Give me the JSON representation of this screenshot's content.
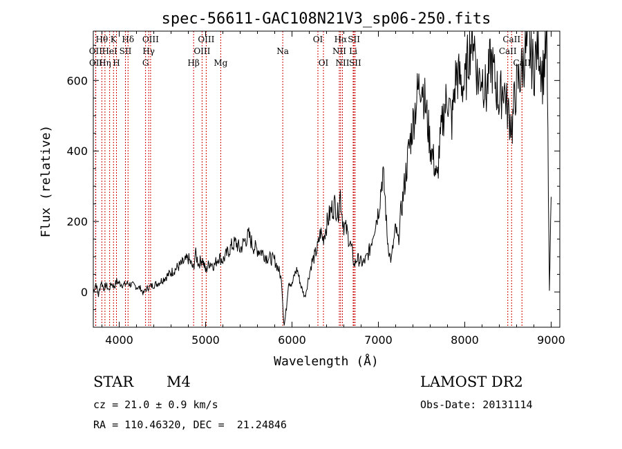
{
  "chart_data": {
    "type": "line",
    "title": "spec-56611-GAC108N21V3_sp06-250.fits",
    "xlabel": "Wavelength (Å)",
    "ylabel": "Flux (relative)",
    "xlim": [
      3700,
      9100
    ],
    "ylim": [
      -100,
      740
    ],
    "xticks": [
      4000,
      5000,
      6000,
      7000,
      8000,
      9000
    ],
    "yticks": [
      0,
      200,
      400,
      600
    ],
    "grid": false,
    "series_color": "#000000",
    "line_marker_color": "#cc0000",
    "series": [
      {
        "x": [
          3700,
          3730,
          3760,
          3790,
          3820,
          3850,
          3880,
          3910,
          3940,
          3970,
          4000,
          4050,
          4100,
          4150,
          4200,
          4250,
          4280,
          4300,
          4350,
          4400,
          4450,
          4500,
          4600,
          4700,
          4800,
          4860,
          4880,
          4920,
          4960,
          5000,
          5050,
          5100,
          5150,
          5200,
          5250,
          5300,
          5350,
          5400,
          5450,
          5500,
          5550,
          5600,
          5650,
          5700,
          5750,
          5800,
          5850,
          5880,
          5895,
          5910,
          5930,
          5960,
          6000,
          6030,
          6060,
          6100,
          6150,
          6200,
          6230,
          6260,
          6300,
          6330,
          6360,
          6400,
          6450,
          6500,
          6530,
          6560,
          6580,
          6600,
          6630,
          6660,
          6700,
          6720,
          6750,
          6780,
          6820,
          6860,
          6900,
          6950,
          7000,
          7020,
          7050,
          7080,
          7100,
          7130,
          7150,
          7170,
          7200,
          7230,
          7250,
          7300,
          7350,
          7400,
          7450,
          7500,
          7550,
          7600,
          7650,
          7680,
          7700,
          7750,
          7800,
          7850,
          7900,
          7950,
          8000,
          8050,
          8100,
          8150,
          8200,
          8250,
          8300,
          8350,
          8400,
          8450,
          8500,
          8550,
          8580,
          8600,
          8650,
          8700,
          8750,
          8800,
          8850,
          8900,
          8950,
          8980,
          9000
        ],
        "y": [
          0,
          25,
          -10,
          30,
          10,
          20,
          5,
          25,
          15,
          30,
          25,
          20,
          25,
          20,
          15,
          10,
          -5,
          5,
          15,
          20,
          25,
          35,
          55,
          75,
          95,
          65,
          110,
          80,
          95,
          60,
          85,
          75,
          100,
          90,
          110,
          130,
          140,
          120,
          145,
          160,
          130,
          120,
          115,
          100,
          95,
          90,
          60,
          30,
          -40,
          -95,
          -60,
          30,
          20,
          50,
          65,
          20,
          -15,
          50,
          85,
          100,
          130,
          170,
          150,
          190,
          230,
          250,
          220,
          280,
          220,
          190,
          175,
          150,
          110,
          75,
          95,
          90,
          80,
          95,
          120,
          180,
          230,
          270,
          340,
          260,
          160,
          105,
          90,
          130,
          180,
          140,
          200,
          300,
          400,
          480,
          560,
          610,
          520,
          420,
          360,
          310,
          390,
          500,
          560,
          480,
          620,
          600,
          580,
          690,
          740,
          600,
          620,
          560,
          660,
          600,
          540,
          590,
          510,
          470,
          560,
          580,
          620,
          680,
          690,
          630,
          720,
          610,
          710,
          -5,
          270
        ]
      }
    ],
    "line_ids": [
      {
        "wl": 3799,
        "row": 0,
        "label": "Hθ"
      },
      {
        "wl": 3727,
        "row": 1,
        "label": "OII"
      },
      {
        "wl": 3729,
        "row": 2,
        "label": "OII"
      },
      {
        "wl": 3835,
        "row": 2,
        "label": "Hη"
      },
      {
        "wl": 3889,
        "row": 1,
        "label": "HeI"
      },
      {
        "wl": 3934,
        "row": 0,
        "label": "K"
      },
      {
        "wl": 3968,
        "row": 2,
        "label": "H"
      },
      {
        "wl": 4072,
        "row": 1,
        "label": "SII"
      },
      {
        "wl": 4102,
        "row": 0,
        "label": "Hδ"
      },
      {
        "wl": 4305,
        "row": 2,
        "label": "G"
      },
      {
        "wl": 4341,
        "row": 1,
        "label": "Hγ"
      },
      {
        "wl": 4363,
        "row": 0,
        "label": "OIII"
      },
      {
        "wl": 4861,
        "row": 2,
        "label": "Hβ"
      },
      {
        "wl": 4959,
        "row": 1,
        "label": "OIII"
      },
      {
        "wl": 5007,
        "row": 0,
        "label": "OIII"
      },
      {
        "wl": 5175,
        "row": 2,
        "label": "Mg"
      },
      {
        "wl": 5893,
        "row": 1,
        "label": "Na"
      },
      {
        "wl": 6300,
        "row": 0,
        "label": "OI"
      },
      {
        "wl": 6364,
        "row": 2,
        "label": "OI"
      },
      {
        "wl": 6548,
        "row": 1,
        "label": "NII"
      },
      {
        "wl": 6563,
        "row": 0,
        "label": "Hα"
      },
      {
        "wl": 6584,
        "row": 2,
        "label": "NII"
      },
      {
        "wl": 6708,
        "row": 1,
        "label": "Li"
      },
      {
        "wl": 6717,
        "row": 0,
        "label": "SII"
      },
      {
        "wl": 6731,
        "row": 2,
        "label": "SII"
      },
      {
        "wl": 8498,
        "row": 1,
        "label": "CaII"
      },
      {
        "wl": 8542,
        "row": 0,
        "label": "CaII"
      },
      {
        "wl": 8662,
        "row": 2,
        "label": "CaII"
      }
    ]
  },
  "info": {
    "class_label": "STAR",
    "subclass": "M4",
    "survey": "LAMOST DR2",
    "cz": "cz = 21.0 ± 0.9 km/s",
    "obs_date": "Obs-Date: 20131114",
    "radec": "RA = 110.46320, DEC =  21.24846"
  }
}
